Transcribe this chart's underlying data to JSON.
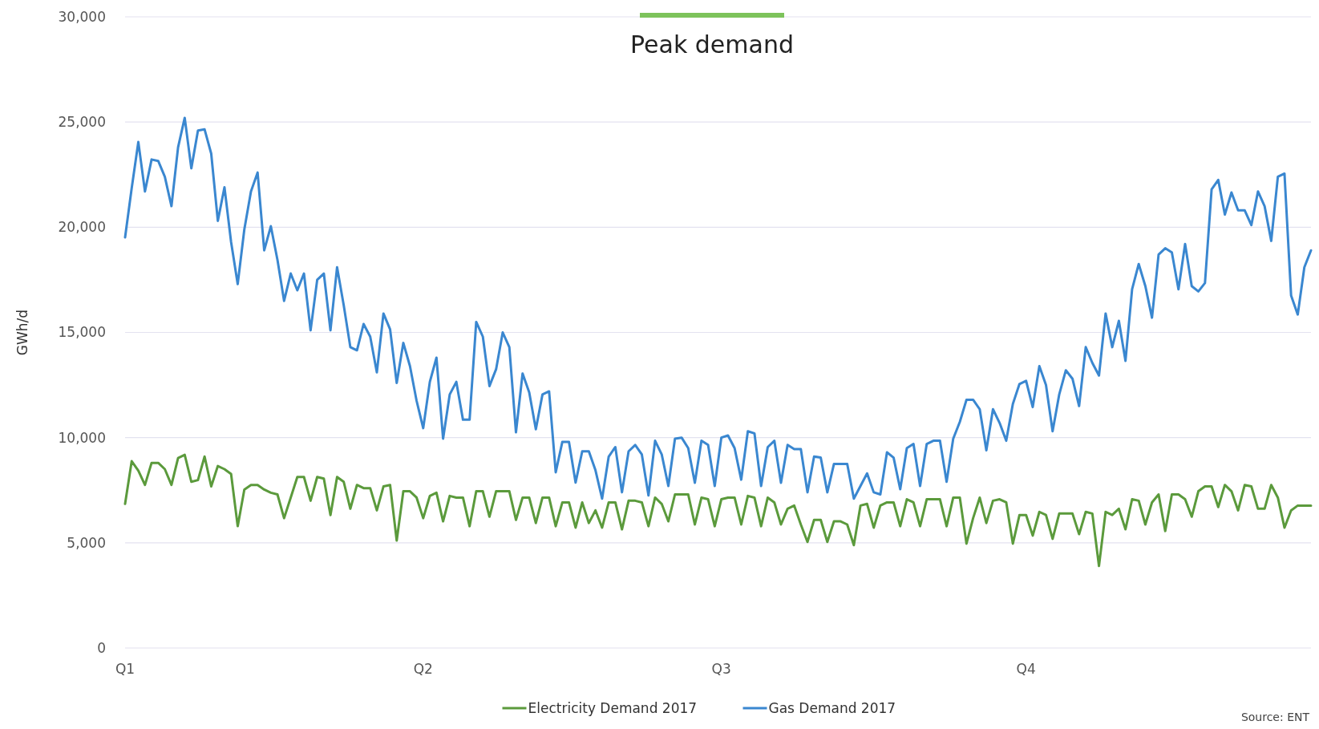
{
  "chart_data": {
    "type": "line",
    "title": "Peak demand",
    "ylabel": "GWh/d",
    "annotations": [
      "Source: ENT"
    ],
    "categories": [
      "Q1",
      null,
      null,
      null,
      null,
      null,
      null,
      null,
      null,
      null,
      null,
      null,
      null,
      null,
      null,
      null,
      null,
      null,
      null,
      null,
      null,
      null,
      null,
      null,
      null,
      null,
      null,
      null,
      null,
      null,
      null,
      null,
      null,
      null,
      null,
      null,
      null,
      null,
      null,
      null,
      null,
      null,
      null,
      null,
      null,
      "Q2",
      null,
      null,
      null,
      null,
      null,
      null,
      null,
      null,
      null,
      null,
      null,
      null,
      null,
      null,
      null,
      null,
      null,
      null,
      null,
      null,
      null,
      null,
      null,
      null,
      null,
      null,
      null,
      null,
      null,
      null,
      null,
      null,
      null,
      null,
      null,
      null,
      null,
      null,
      null,
      null,
      null,
      null,
      null,
      null,
      "Q3",
      null,
      null,
      null,
      null,
      null,
      null,
      null,
      null,
      null,
      null,
      null,
      null,
      null,
      null,
      null,
      null,
      null,
      null,
      null,
      null,
      null,
      null,
      null,
      null,
      null,
      null,
      null,
      null,
      null,
      null,
      null,
      null,
      null,
      null,
      null,
      null,
      null,
      null,
      null,
      null,
      null,
      null,
      null,
      null,
      null,
      "Q4",
      null,
      null,
      null,
      null,
      null,
      null,
      null,
      null,
      null,
      null,
      null,
      null,
      null,
      null,
      null,
      null,
      null,
      null,
      null,
      null,
      null,
      null,
      null,
      null,
      null,
      null,
      null,
      null,
      null,
      null,
      null,
      null,
      null,
      null,
      null,
      null,
      null,
      null,
      null,
      null,
      null,
      null,
      null
    ],
    "ylim": [
      0,
      30000
    ],
    "yticks": [
      {
        "value": 0,
        "label": "0"
      },
      {
        "value": 5000,
        "label": "5,000"
      },
      {
        "value": 10000,
        "label": "10,000"
      },
      {
        "value": 15000,
        "label": "15,000"
      },
      {
        "value": 20000,
        "label": "20,000"
      },
      {
        "value": 25000,
        "label": "25,000"
      },
      {
        "value": 30000,
        "label": "30,000"
      }
    ],
    "grid": "y",
    "legend": "bottom",
    "line_style": "solid",
    "series": [
      {
        "name": "Electricity Demand 2017",
        "color": "#5b9a3c",
        "values": [
          6850,
          8880,
          8430,
          7750,
          8800,
          8800,
          8500,
          7750,
          9030,
          9180,
          7900,
          7980,
          9100,
          7680,
          8650,
          8500,
          8270,
          5790,
          7530,
          7750,
          7750,
          7530,
          7380,
          7300,
          6170,
          7150,
          8130,
          8130,
          7000,
          8130,
          8050,
          6320,
          8130,
          7900,
          6620,
          7750,
          7600,
          7600,
          6540,
          7680,
          7750,
          5110,
          7450,
          7450,
          7150,
          6170,
          7230,
          7380,
          6020,
          7230,
          7150,
          7150,
          5790,
          7450,
          7450,
          6240,
          7450,
          7450,
          7450,
          6090,
          7150,
          7150,
          5940,
          7150,
          7150,
          5790,
          6920,
          6920,
          5720,
          6920,
          5940,
          6540,
          5720,
          6920,
          6920,
          5640,
          7000,
          7000,
          6920,
          5790,
          7150,
          6850,
          6020,
          7300,
          7300,
          7300,
          5870,
          7150,
          7070,
          5790,
          7070,
          7150,
          7150,
          5870,
          7230,
          7150,
          5790,
          7150,
          6920,
          5870,
          6620,
          6770,
          5870,
          5040,
          6090,
          6090,
          5040,
          6020,
          6020,
          5870,
          4890,
          6770,
          6850,
          5720,
          6770,
          6920,
          6920,
          5790,
          7070,
          6920,
          5790,
          7070,
          7070,
          7070,
          5790,
          7150,
          7150,
          4960,
          6170,
          7150,
          5940,
          7000,
          7070,
          6920,
          4960,
          6320,
          6320,
          5340,
          6470,
          6320,
          5190,
          6390,
          6390,
          6390,
          5410,
          6470,
          6390,
          3900,
          6470,
          6320,
          6620,
          5640,
          7070,
          7000,
          5870,
          6920,
          7300,
          5560,
          7300,
          7300,
          7070,
          6240,
          7450,
          7680,
          7680,
          6700,
          7750,
          7450,
          6540,
          7750,
          7680,
          6620,
          6620,
          7750,
          7150,
          5720,
          6540,
          6770,
          6770,
          6770
        ]
      },
      {
        "name": "Gas Demand 2017",
        "color": "#3a87d0",
        "values": [
          19520,
          21860,
          24050,
          21700,
          23220,
          23150,
          22400,
          21000,
          23800,
          25200,
          22800,
          24600,
          24650,
          23500,
          20300,
          21900,
          19300,
          17300,
          19900,
          21700,
          22600,
          18900,
          20050,
          18450,
          16500,
          17800,
          17000,
          17800,
          15100,
          17500,
          17800,
          15100,
          18100,
          16300,
          14300,
          14150,
          15400,
          14800,
          13100,
          15900,
          15150,
          12600,
          14500,
          13400,
          11750,
          10450,
          12650,
          13800,
          9950,
          12050,
          12650,
          10850,
          10850,
          15500,
          14800,
          12450,
          13250,
          15000,
          14300,
          10250,
          13050,
          12150,
          10400,
          12050,
          12200,
          8350,
          9800,
          9800,
          7860,
          9350,
          9350,
          8450,
          7100,
          9100,
          9550,
          7400,
          9350,
          9650,
          9200,
          7250,
          9850,
          9200,
          7700,
          9950,
          10000,
          9500,
          7850,
          9850,
          9650,
          7700,
          10000,
          10100,
          9500,
          8000,
          10300,
          10200,
          7700,
          9550,
          9850,
          7850,
          9650,
          9450,
          9450,
          7400,
          9100,
          9050,
          7400,
          8750,
          8750,
          8750,
          7100,
          7700,
          8300,
          7400,
          7300,
          9300,
          9050,
          7550,
          9500,
          9700,
          7700,
          9700,
          9850,
          9850,
          7900,
          9950,
          10750,
          11800,
          11800,
          11350,
          9400,
          11350,
          10700,
          9850,
          11600,
          12550,
          12700,
          11450,
          13400,
          12500,
          10300,
          12050,
          13200,
          12800,
          11500,
          14300,
          13550,
          12950,
          15900,
          14300,
          15550,
          13650,
          17050,
          18250,
          17200,
          15700,
          18700,
          19000,
          18800,
          17050,
          19200,
          17200,
          16950,
          17350,
          21800,
          22250,
          20600,
          21650,
          20800,
          20800,
          20100,
          21700,
          21000,
          19350,
          22400,
          22550,
          16750,
          15850,
          18100,
          18900
        ]
      }
    ]
  }
}
